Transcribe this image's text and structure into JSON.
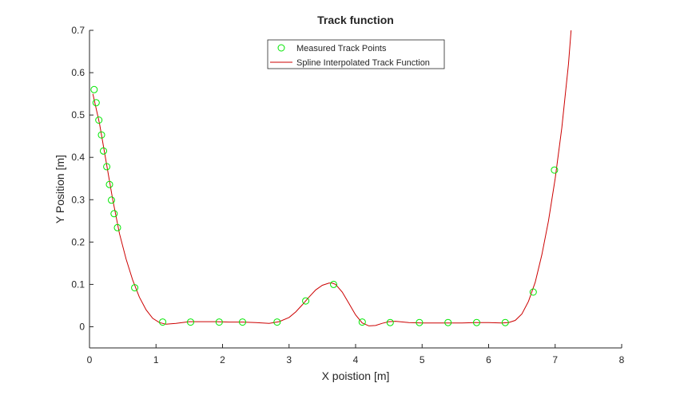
{
  "chart_data": {
    "type": "line",
    "title": "Track function",
    "xlabel": "X poistion [m]",
    "ylabel": "Y Position [m]",
    "xlim": [
      0,
      8
    ],
    "ylim": [
      -0.05,
      0.7
    ],
    "xticks": [
      "0",
      "1",
      "2",
      "3",
      "4",
      "5",
      "6",
      "7",
      "8"
    ],
    "yticks": [
      "0",
      "0.1",
      "0.2",
      "0.3",
      "0.4",
      "0.5",
      "0.6",
      "0.7"
    ],
    "grid": false,
    "legend_position": "top-center",
    "series": [
      {
        "name": "Measured Track Points",
        "kind": "markers",
        "marker": "circle",
        "color": "#00e600",
        "x": [
          0.07,
          0.1,
          0.14,
          0.18,
          0.21,
          0.26,
          0.3,
          0.33,
          0.37,
          0.42,
          0.68,
          1.1,
          1.52,
          1.95,
          2.3,
          2.82,
          3.25,
          3.67,
          4.1,
          4.52,
          4.96,
          5.39,
          5.82,
          6.25,
          6.67,
          6.99
        ],
        "y": [
          0.56,
          0.529,
          0.488,
          0.453,
          0.415,
          0.378,
          0.336,
          0.299,
          0.267,
          0.234,
          0.092,
          0.011,
          0.011,
          0.011,
          0.011,
          0.011,
          0.061,
          0.1,
          0.011,
          0.01,
          0.01,
          0.01,
          0.01,
          0.01,
          0.082,
          0.37
        ]
      },
      {
        "name": "Spline Interpolated Track Function",
        "kind": "line",
        "color": "#cc0000",
        "x": [
          0.05,
          0.15,
          0.25,
          0.35,
          0.45,
          0.55,
          0.65,
          0.75,
          0.85,
          0.95,
          1.05,
          1.15,
          1.3,
          1.5,
          1.7,
          1.9,
          2.1,
          2.3,
          2.5,
          2.7,
          2.85,
          3.0,
          3.1,
          3.2,
          3.3,
          3.4,
          3.5,
          3.6,
          3.65,
          3.7,
          3.8,
          3.9,
          4.0,
          4.1,
          4.2,
          4.3,
          4.4,
          4.5,
          4.6,
          4.8,
          5.0,
          5.2,
          5.4,
          5.6,
          5.8,
          6.0,
          6.2,
          6.3,
          6.4,
          6.5,
          6.6,
          6.7,
          6.8,
          6.9,
          7.0,
          7.1,
          7.2,
          7.24
        ],
        "y": [
          0.55,
          0.48,
          0.39,
          0.3,
          0.22,
          0.16,
          0.11,
          0.07,
          0.04,
          0.02,
          0.01,
          0.006,
          0.008,
          0.012,
          0.012,
          0.012,
          0.011,
          0.011,
          0.01,
          0.008,
          0.012,
          0.022,
          0.035,
          0.052,
          0.07,
          0.087,
          0.098,
          0.103,
          0.103,
          0.1,
          0.082,
          0.055,
          0.028,
          0.009,
          0.002,
          0.003,
          0.008,
          0.012,
          0.013,
          0.01,
          0.009,
          0.009,
          0.009,
          0.009,
          0.01,
          0.01,
          0.009,
          0.01,
          0.015,
          0.03,
          0.06,
          0.105,
          0.17,
          0.25,
          0.35,
          0.47,
          0.62,
          0.7
        ]
      }
    ]
  }
}
